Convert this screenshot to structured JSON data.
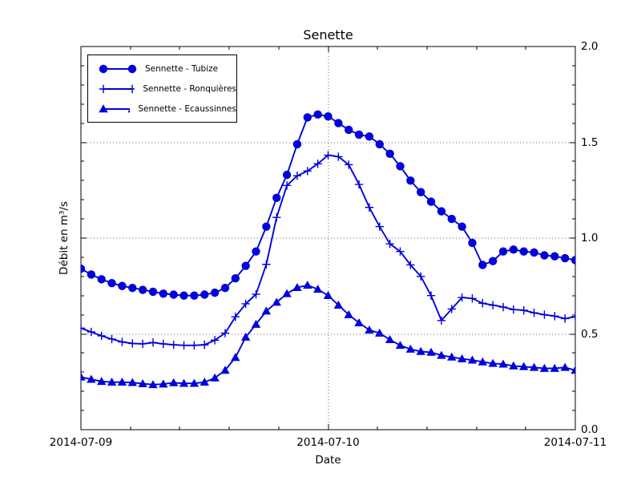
{
  "chart_data": {
    "type": "line",
    "title": "Senette",
    "xlabel": "Date",
    "ylabel": "Débit en m³/s",
    "x_start": "2014-07-09 00:00",
    "x_end": "2014-07-11 00:00",
    "x_step_hours": 1,
    "xlim_hours": [
      0,
      48
    ],
    "ylim": [
      0,
      2
    ],
    "x_ticks": [
      {
        "hour": 0,
        "label": "2014-07-09"
      },
      {
        "hour": 24,
        "label": "2014-07-10"
      },
      {
        "hour": 48,
        "label": "2014-07-11"
      }
    ],
    "x_minor_tick_step_hours": 4.8,
    "y_ticks": [
      {
        "value": 0.0,
        "label": "0.0"
      },
      {
        "value": 0.5,
        "label": "0.5"
      },
      {
        "value": 1.0,
        "label": "1.0"
      },
      {
        "value": 1.5,
        "label": "1.5"
      },
      {
        "value": 2.0,
        "label": "2.0"
      }
    ],
    "y_minor_tick_step": 0.1,
    "y_tick_label_side": "right",
    "grid": {
      "style": "dotted",
      "y_values": [
        0.5,
        1.0,
        1.5
      ],
      "x_hours": [
        24
      ]
    },
    "legend": {
      "position": "upper-left"
    },
    "colors": {
      "series": "#0000dd",
      "grid": "#666666",
      "axis": "#000000",
      "background": "#ffffff"
    },
    "series": [
      {
        "name": "Sennette - Tubize",
        "marker": "circle",
        "values": [
          0.84,
          0.81,
          0.785,
          0.765,
          0.75,
          0.74,
          0.73,
          0.72,
          0.71,
          0.705,
          0.7,
          0.7,
          0.705,
          0.715,
          0.74,
          0.79,
          0.855,
          0.93,
          1.06,
          1.21,
          1.33,
          1.49,
          1.63,
          1.645,
          1.635,
          1.6,
          1.565,
          1.54,
          1.53,
          1.49,
          1.44,
          1.375,
          1.3,
          1.24,
          1.19,
          1.14,
          1.1,
          1.06,
          0.975,
          0.86,
          0.88,
          0.93,
          0.94,
          0.93,
          0.925,
          0.91,
          0.905,
          0.895,
          0.885
        ]
      },
      {
        "name": "Sennette - Ronquières",
        "marker": "plus",
        "values": [
          0.53,
          0.51,
          0.49,
          0.473,
          0.458,
          0.45,
          0.448,
          0.455,
          0.448,
          0.443,
          0.44,
          0.44,
          0.443,
          0.467,
          0.504,
          0.589,
          0.657,
          0.707,
          0.863,
          1.108,
          1.275,
          1.325,
          1.35,
          1.388,
          1.433,
          1.425,
          1.383,
          1.28,
          1.16,
          1.06,
          0.97,
          0.93,
          0.86,
          0.8,
          0.7,
          0.57,
          0.63,
          0.69,
          0.685,
          0.66,
          0.65,
          0.64,
          0.627,
          0.623,
          0.61,
          0.6,
          0.593,
          0.58,
          0.59
        ]
      },
      {
        "name": "Sennette - Ecaussinnes",
        "marker": "triangle-up",
        "values": [
          0.275,
          0.263,
          0.252,
          0.248,
          0.248,
          0.246,
          0.24,
          0.235,
          0.238,
          0.245,
          0.242,
          0.242,
          0.248,
          0.27,
          0.31,
          0.377,
          0.483,
          0.55,
          0.619,
          0.665,
          0.71,
          0.742,
          0.754,
          0.733,
          0.7,
          0.65,
          0.6,
          0.558,
          0.52,
          0.504,
          0.47,
          0.44,
          0.42,
          0.408,
          0.404,
          0.388,
          0.379,
          0.37,
          0.363,
          0.354,
          0.346,
          0.342,
          0.333,
          0.329,
          0.325,
          0.32,
          0.32,
          0.325,
          0.31
        ]
      }
    ]
  }
}
